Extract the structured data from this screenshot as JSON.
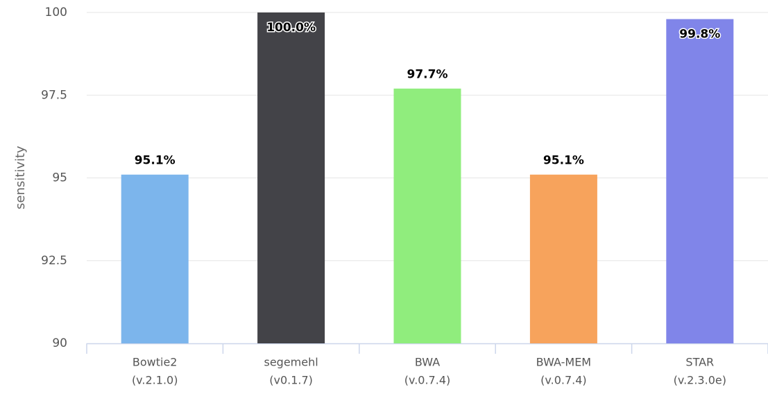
{
  "chart_data": {
    "type": "bar",
    "y_label": "sensitivity",
    "categories": [
      [
        "Bowtie2",
        "(v.2.1.0)"
      ],
      [
        "segemehl",
        "(v0.1.7)"
      ],
      [
        "BWA",
        "(v.0.7.4)"
      ],
      [
        "BWA-MEM",
        "(v.0.7.4)"
      ],
      [
        "STAR",
        "(v.2.3.0e)"
      ]
    ],
    "values": [
      95.1,
      100.0,
      97.7,
      95.1,
      99.8
    ],
    "value_labels": [
      "95.1%",
      "100.0%",
      "97.7%",
      "95.1%",
      "99.8%"
    ],
    "colors": [
      "#7cb5ec",
      "#434348",
      "#90ed7d",
      "#f7a35c",
      "#8085e9"
    ],
    "ylim": [
      90,
      100
    ],
    "yticks": [
      90,
      92.5,
      95,
      97.5,
      100
    ],
    "grid": true
  }
}
